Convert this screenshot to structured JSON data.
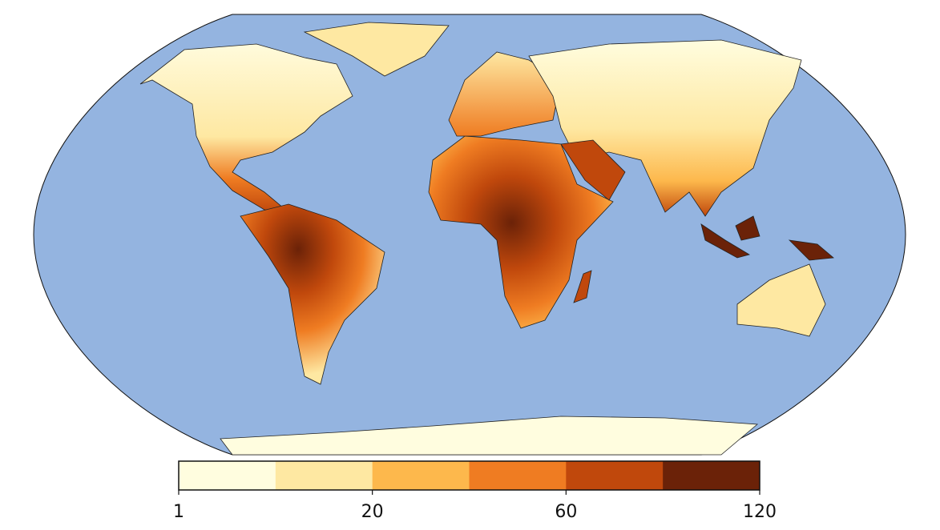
{
  "colorbar": {
    "colors": [
      "#fffddf",
      "#fee8a2",
      "#fdb84c",
      "#ef7c22",
      "#c0480c",
      "#6b2208"
    ],
    "ticks": [
      1,
      20,
      60,
      120
    ]
  }
}
